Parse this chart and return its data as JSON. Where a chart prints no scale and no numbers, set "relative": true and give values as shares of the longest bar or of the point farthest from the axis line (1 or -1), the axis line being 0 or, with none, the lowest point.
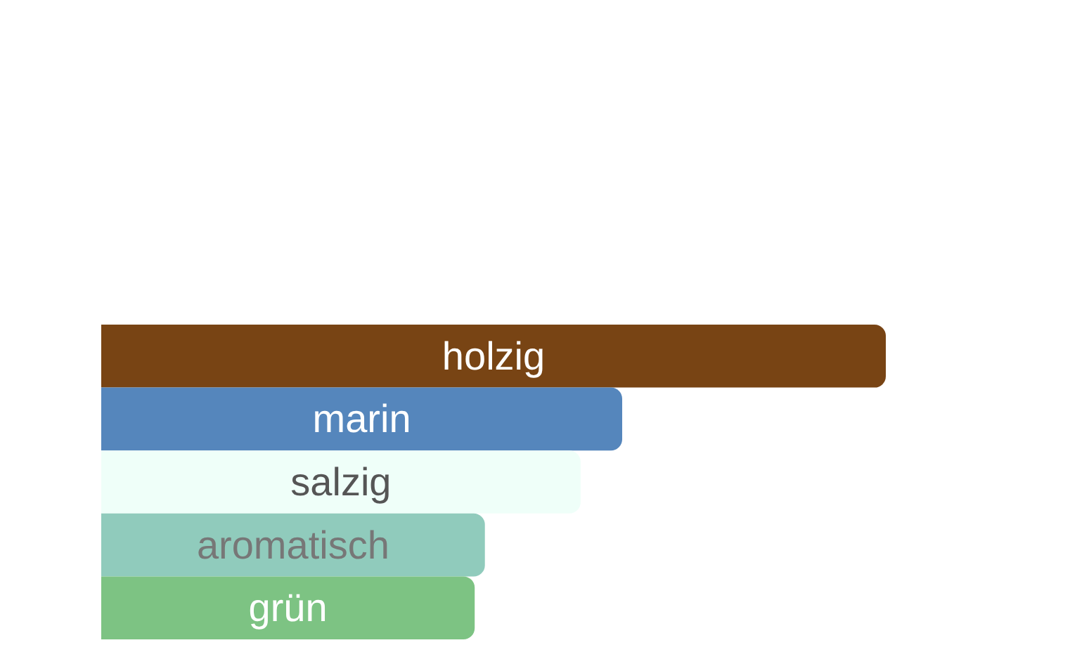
{
  "chart_data": {
    "type": "bar",
    "orientation": "horizontal",
    "relative": true,
    "categories": [
      "holzig",
      "marin",
      "salzig",
      "aromatisch",
      "grün"
    ],
    "values": [
      1,
      0.664,
      0.611,
      0.489,
      0.476
    ],
    "colors": [
      "#784414",
      "#5586bc",
      "#effff9",
      "#90cbbc",
      "#7dc383"
    ]
  }
}
